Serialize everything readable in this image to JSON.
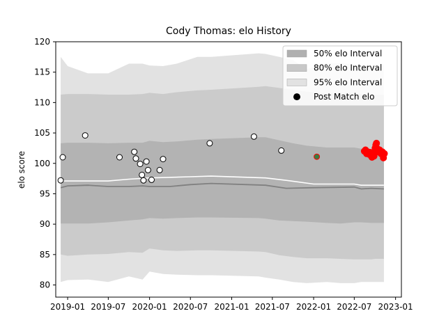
{
  "chart_data": {
    "type": "line",
    "title": "Cody Thomas: elo History",
    "xlabel": "",
    "ylabel": "elo score",
    "ylim": [
      78,
      120
    ],
    "y_ticks": [
      80,
      85,
      90,
      95,
      100,
      105,
      110,
      115,
      120
    ],
    "xlim": [
      "2018-11-09",
      "2023-01-27"
    ],
    "x_ticks": [
      {
        "date": "2019-01-01",
        "label": "2019-01"
      },
      {
        "date": "2019-07-01",
        "label": "2019-07"
      },
      {
        "date": "2020-01-01",
        "label": "2020-01"
      },
      {
        "date": "2020-07-01",
        "label": "2020-07"
      },
      {
        "date": "2021-01-01",
        "label": "2021-01"
      },
      {
        "date": "2021-07-01",
        "label": "2021-07"
      },
      {
        "date": "2022-01-01",
        "label": "2022-01"
      },
      {
        "date": "2022-07-01",
        "label": "2022-07"
      },
      {
        "date": "2023-01-01",
        "label": "2023-01"
      }
    ],
    "grid": false,
    "legend_position": "top-right",
    "legend": [
      {
        "label": "50% elo Interval",
        "kind": "band",
        "color": "#b0b0b0"
      },
      {
        "label": "80% elo Interval",
        "kind": "band",
        "color": "#c8c8c8"
      },
      {
        "label": "95% elo Interval",
        "kind": "band",
        "color": "#e2e2e2"
      },
      {
        "label": "Post Match elo",
        "kind": "marker",
        "color": "#000000"
      }
    ],
    "bands": {
      "x": [
        "2018-12-01",
        "2019-01-01",
        "2019-04-01",
        "2019-07-01",
        "2019-10-01",
        "2019-12-01",
        "2020-01-01",
        "2020-03-01",
        "2020-05-01",
        "2020-08-01",
        "2020-10-01",
        "2021-05-01",
        "2021-06-01",
        "2021-08-01",
        "2021-10-01",
        "2021-12-01",
        "2022-03-01",
        "2022-05-01",
        "2022-07-01",
        "2022-08-01",
        "2022-09-15",
        "2022-10-01",
        "2022-11-10"
      ],
      "p95": {
        "upper": [
          117.5,
          116.0,
          114.8,
          114.8,
          116.4,
          116.4,
          116.1,
          116.0,
          116.4,
          117.5,
          117.5,
          118.1,
          118.0,
          117.5,
          117.0,
          115.5,
          116.5,
          116.5,
          116.3,
          116.0,
          116.0,
          116.0,
          116.2
        ],
        "lower": [
          80.5,
          80.8,
          80.9,
          80.5,
          81.4,
          80.9,
          82.2,
          81.8,
          81.7,
          81.6,
          81.6,
          81.4,
          81.2,
          80.9,
          80.5,
          80.3,
          80.5,
          80.3,
          80.3,
          80.5,
          80.5,
          80.5,
          80.5
        ]
      },
      "p80": {
        "upper": [
          111.3,
          111.4,
          111.4,
          111.3,
          111.3,
          111.4,
          111.6,
          111.4,
          111.7,
          112.0,
          112.1,
          112.6,
          112.7,
          112.4,
          112.1,
          111.8,
          111.5,
          111.6,
          111.6,
          111.4,
          111.3,
          111.3,
          111.3
        ],
        "lower": [
          85.0,
          84.8,
          85.0,
          85.1,
          85.4,
          85.3,
          86.0,
          85.7,
          85.6,
          85.7,
          85.7,
          85.5,
          85.4,
          84.9,
          84.6,
          84.4,
          84.4,
          84.3,
          84.2,
          84.2,
          84.2,
          84.3,
          84.3
        ]
      },
      "p50": {
        "upper": [
          103.3,
          103.4,
          103.4,
          103.3,
          103.4,
          103.4,
          103.7,
          103.5,
          103.6,
          103.9,
          104.0,
          104.3,
          104.3,
          103.8,
          103.3,
          102.9,
          102.6,
          102.6,
          102.6,
          102.4,
          102.3,
          102.3,
          102.3
        ],
        "lower": [
          90.1,
          90.1,
          90.1,
          90.3,
          90.6,
          90.8,
          91.0,
          90.9,
          91.0,
          91.1,
          91.1,
          91.0,
          90.9,
          90.6,
          90.5,
          90.4,
          90.2,
          90.1,
          90.3,
          90.3,
          90.2,
          90.2,
          90.2
        ]
      }
    },
    "series": [
      {
        "kind": "mean",
        "color": "#ffffff",
        "x": [
          "2018-12-01",
          "2019-01-01",
          "2019-07-01",
          "2019-10-01",
          "2020-01-01",
          "2020-07-01",
          "2020-10-01",
          "2021-06-01",
          "2021-09-01",
          "2022-01-01",
          "2022-07-01",
          "2022-08-01",
          "2022-11-10"
        ],
        "y": [
          97.1,
          97.1,
          97.1,
          97.4,
          97.6,
          97.8,
          97.9,
          97.6,
          97.2,
          96.6,
          96.6,
          96.4,
          96.4
        ]
      },
      {
        "kind": "median",
        "color": "#808080",
        "x": [
          "2018-12-01",
          "2019-01-01",
          "2019-04-01",
          "2019-07-01",
          "2019-10-01",
          "2019-12-01",
          "2020-01-01",
          "2020-04-01",
          "2020-07-01",
          "2020-10-01",
          "2021-06-01",
          "2021-09-01",
          "2022-01-01",
          "2022-07-01",
          "2022-08-01",
          "2022-09-15",
          "2022-11-10"
        ],
        "y": [
          96.0,
          96.3,
          96.4,
          96.2,
          96.2,
          96.3,
          96.2,
          96.2,
          96.5,
          96.7,
          96.4,
          95.9,
          96.0,
          96.1,
          95.8,
          95.9,
          95.8
        ]
      },
      {
        "kind": "post-match",
        "marker_fill": "#ffffff",
        "marker_edge": "#000000",
        "x": [
          "2018-12-01",
          "2018-12-10",
          "2019-03-20",
          "2019-08-20",
          "2019-10-25",
          "2019-11-01",
          "2019-11-20",
          "2019-11-28",
          "2019-12-05",
          "2019-12-18",
          "2019-12-25",
          "2020-01-10",
          "2020-02-15",
          "2020-03-01",
          "2020-09-25",
          "2021-04-10",
          "2021-08-10"
        ],
        "y": [
          97.2,
          101.0,
          104.6,
          101.0,
          101.9,
          100.8,
          99.9,
          98.1,
          97.2,
          100.3,
          98.9,
          97.3,
          98.9,
          100.7,
          103.3,
          104.4,
          102.1
        ]
      },
      {
        "kind": "post-match-highlight",
        "marker_fill": "#3a7d44",
        "marker_edge": "#ff0000",
        "x": [
          "2022-01-15"
        ],
        "y": [
          101.1
        ]
      },
      {
        "kind": "recent-matches",
        "marker_fill": "#ff0000",
        "marker_edge": "#ff0000",
        "x": [
          "2022-08-15",
          "2022-08-20",
          "2022-08-25",
          "2022-08-30",
          "2022-09-05",
          "2022-09-10",
          "2022-09-15",
          "2022-09-18",
          "2022-09-22",
          "2022-09-27",
          "2022-10-02",
          "2022-10-05",
          "2022-10-08",
          "2022-10-12",
          "2022-10-16",
          "2022-10-22",
          "2022-10-28",
          "2022-11-03",
          "2022-11-08",
          "2022-11-12"
        ],
        "y": [
          102.0,
          102.2,
          101.6,
          101.9,
          101.5,
          101.8,
          101.2,
          101.0,
          101.5,
          101.2,
          102.5,
          103.0,
          103.3,
          102.4,
          101.9,
          102.2,
          101.6,
          101.9,
          100.9,
          101.6
        ]
      }
    ]
  }
}
